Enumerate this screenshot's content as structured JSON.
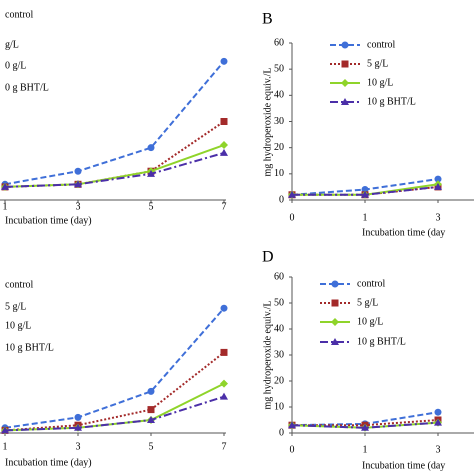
{
  "chart_data": [
    {
      "type": "line",
      "categories": [
        "1",
        "3",
        "5",
        "7"
      ],
      "xlabel": "Incubation time (day)",
      "ylim": [
        0,
        60
      ],
      "series": [
        {
          "name": "control",
          "color": "#3f6fd8",
          "values": [
            6,
            11,
            20,
            53
          ]
        },
        {
          "name": "g/L",
          "color": "#a32a2a",
          "values": [
            5,
            6,
            11,
            30
          ]
        },
        {
          "name": "0 g/L",
          "color": "#8fd42a",
          "values": [
            5,
            6,
            11,
            21
          ]
        },
        {
          "name": "0 g BHT/L",
          "color": "#4b2fa8",
          "values": [
            5,
            6,
            10,
            18
          ]
        }
      ]
    },
    {
      "type": "line",
      "panel": "B",
      "categories": [
        "0",
        "1",
        "3"
      ],
      "xlabel": "Incubation time (day",
      "ylabel": "mg hydroperoxide equiv./L",
      "ylim": [
        0,
        60
      ],
      "yticks": [
        0,
        10,
        20,
        30,
        40,
        50,
        60
      ],
      "series": [
        {
          "name": "control",
          "color": "#3f6fd8",
          "values": [
            2,
            4,
            8
          ]
        },
        {
          "name": "5 g/L",
          "color": "#a32a2a",
          "values": [
            2,
            2,
            5
          ]
        },
        {
          "name": "10 g/L",
          "color": "#8fd42a",
          "values": [
            2,
            2,
            6
          ]
        },
        {
          "name": "10 g BHT/L",
          "color": "#4b2fa8",
          "values": [
            2,
            2,
            5
          ]
        }
      ]
    },
    {
      "type": "line",
      "categories": [
        "1",
        "3",
        "5",
        "7"
      ],
      "xlabel": "Incubation time (day)",
      "ylim": [
        0,
        60
      ],
      "series": [
        {
          "name": "control",
          "color": "#3f6fd8",
          "values": [
            2,
            6,
            16,
            48
          ]
        },
        {
          "name": "5 g/L",
          "color": "#a32a2a",
          "values": [
            1,
            3,
            9,
            31
          ]
        },
        {
          "name": "10 g/L",
          "color": "#8fd42a",
          "values": [
            1,
            2,
            5,
            19
          ]
        },
        {
          "name": "10 g BHT/L",
          "color": "#4b2fa8",
          "values": [
            1,
            2,
            5,
            14
          ]
        }
      ]
    },
    {
      "type": "line",
      "panel": "D",
      "categories": [
        "0",
        "1",
        "3"
      ],
      "xlabel": "Incubation time (day",
      "ylabel": "mg hydroperoxide equiv./L",
      "ylim": [
        0,
        60
      ],
      "yticks": [
        0,
        10,
        20,
        30,
        40,
        50,
        60
      ],
      "series": [
        {
          "name": "control",
          "color": "#3f6fd8",
          "values": [
            3,
            3.5,
            8
          ]
        },
        {
          "name": "5 g/L",
          "color": "#a32a2a",
          "values": [
            3,
            3,
            5
          ]
        },
        {
          "name": "10 g/L",
          "color": "#8fd42a",
          "values": [
            3,
            2,
            4
          ]
        },
        {
          "name": "10 g BHT/L",
          "color": "#4b2fa8",
          "values": [
            3,
            2,
            4
          ]
        }
      ]
    }
  ]
}
